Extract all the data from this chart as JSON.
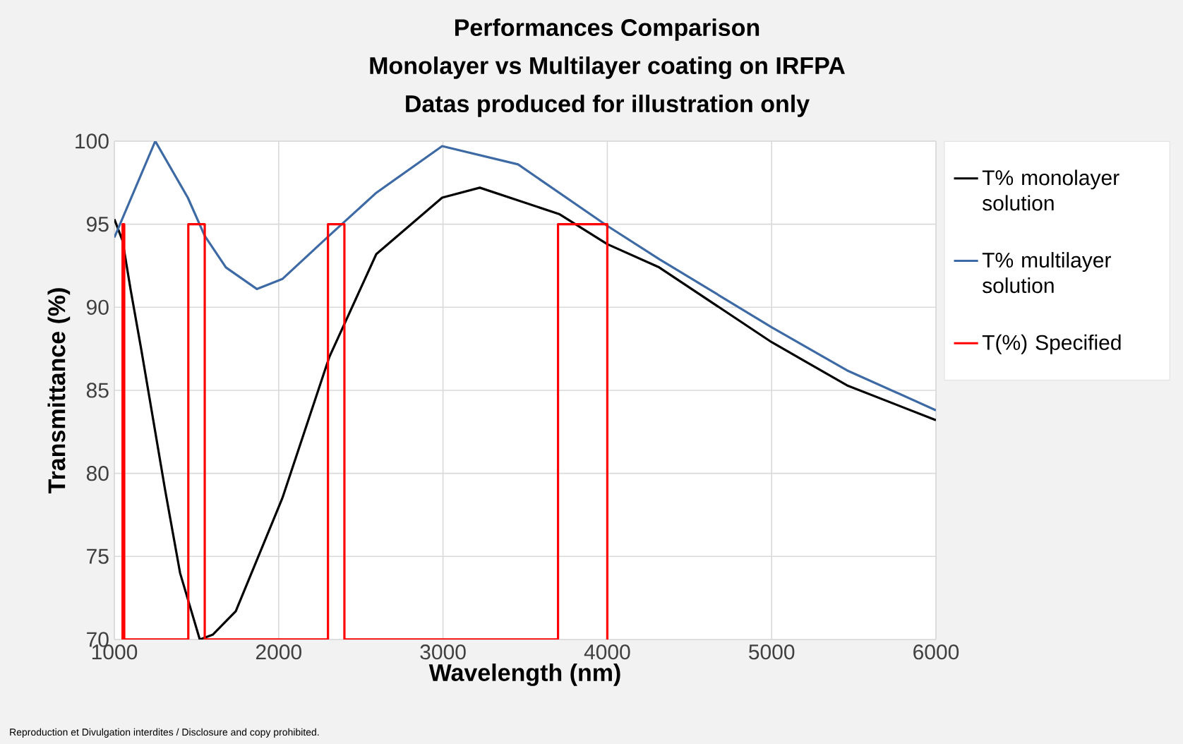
{
  "chart_data": {
    "type": "line",
    "title": "Performances Comparison",
    "subtitle": "Monolayer vs Multilayer coating on IRFPA",
    "annotations": [
      "Datas produced for illustration only",
      "Reproduction et Divulgation interdites / Disclosure and copy prohibited."
    ],
    "xlabel": "Wavelength (nm)",
    "ylabel": "Transmittance (%)",
    "xlim": [
      1000,
      6000
    ],
    "xticks": [
      1000,
      2000,
      3000,
      4000,
      5000,
      6000
    ],
    "ylim": [
      70,
      100
    ],
    "yticks": [
      70,
      75,
      80,
      85,
      90,
      95,
      100
    ],
    "grid": true,
    "legend": "right",
    "marker": "none",
    "series": [
      {
        "name": "T% monolayer solution",
        "color": "#000000",
        "x": [
          1000,
          1050,
          1100,
          1163,
          1309,
          1400,
          1520,
          1600,
          1739,
          2022,
          2308,
          2594,
          2995,
          3224,
          3710,
          4000,
          4316,
          5000,
          5459,
          6000
        ],
        "values": [
          95.3,
          94,
          91,
          87.5,
          79,
          74,
          70,
          70.3,
          71.7,
          78.5,
          87,
          93.2,
          96.6,
          97.2,
          95.6,
          93.8,
          92.4,
          87.9,
          85.3,
          83.2
        ]
      },
      {
        "name": "T% multilayer solution",
        "color": "#3d6aa5",
        "x": [
          1000,
          1249,
          1447,
          1550,
          1679,
          1867,
          2022,
          2306,
          2595,
          2995,
          3457,
          4000,
          4316,
          5000,
          5459,
          6000
        ],
        "values": [
          94.2,
          100,
          96.6,
          94.3,
          92.4,
          91.1,
          91.7,
          94.3,
          96.9,
          99.7,
          98.6,
          94.9,
          92.9,
          88.8,
          86.2,
          83.8
        ]
      },
      {
        "name": "T(%) Specified",
        "color": "#ff0000",
        "x": [
          1050,
          1050,
          1060,
          1060,
          1450,
          1450,
          1550,
          1550,
          2300,
          2300,
          2400,
          2400,
          3700,
          3700,
          4000,
          4000
        ],
        "values": [
          70,
          95,
          95,
          70,
          70,
          95,
          95,
          70,
          70,
          95,
          95,
          70,
          70,
          95,
          95,
          70
        ]
      }
    ]
  }
}
